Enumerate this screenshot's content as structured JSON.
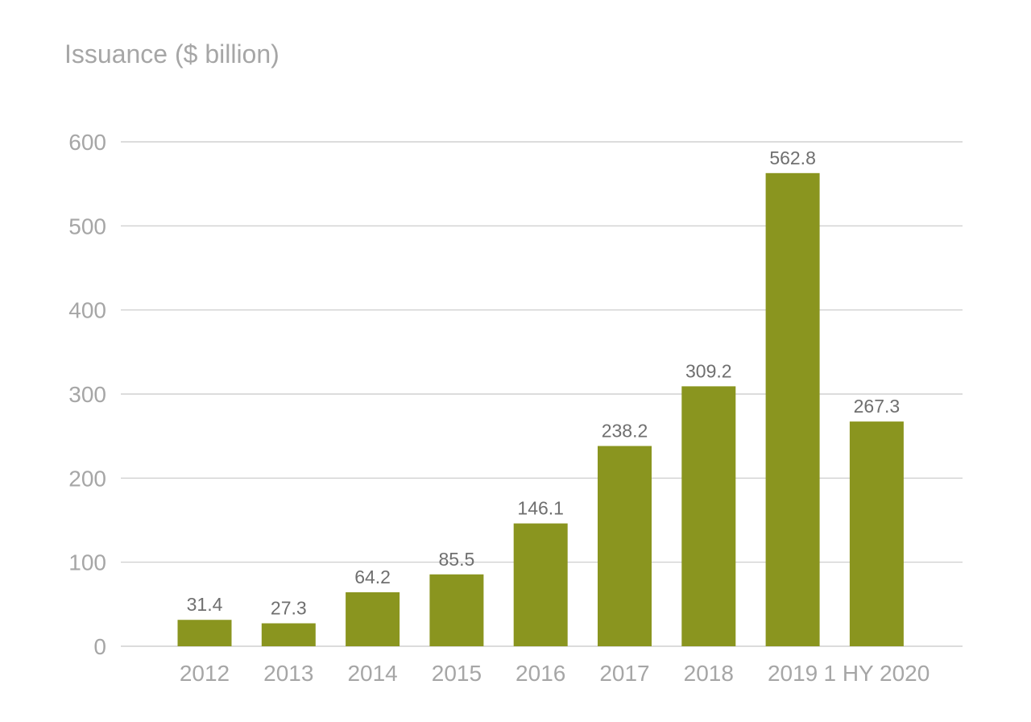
{
  "chart_data": {
    "type": "bar",
    "title": "Issuance ($ billion)",
    "xlabel": "",
    "ylabel": "",
    "categories": [
      "2012",
      "2013",
      "2014",
      "2015",
      "2016",
      "2017",
      "2018",
      "2019",
      "1 HY 2020"
    ],
    "values": [
      31.4,
      27.3,
      64.2,
      85.5,
      146.1,
      238.2,
      309.2,
      562.8,
      267.3
    ],
    "data_labels": [
      "31.4",
      "27.3",
      "64.2",
      "85.5",
      "146.1",
      "238.2",
      "309.2",
      "562.8",
      "267.3"
    ],
    "ylim": [
      0,
      600
    ],
    "yticks": [
      "0",
      "100",
      "200",
      "300",
      "400",
      "500",
      "600"
    ],
    "grid": true,
    "legend": "none",
    "bar_color": "#8a951f"
  }
}
